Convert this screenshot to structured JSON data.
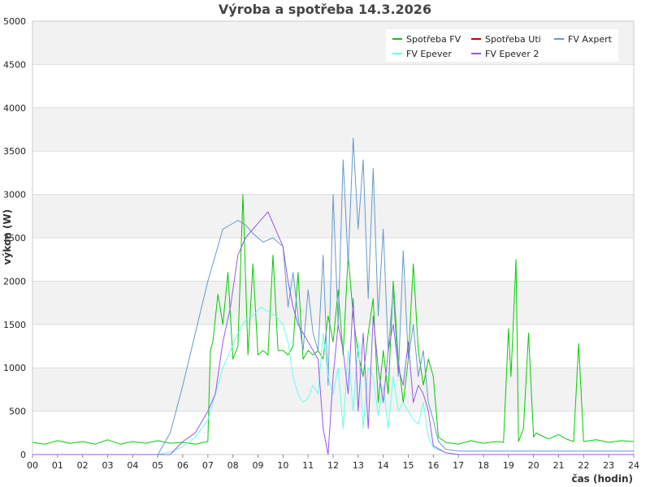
{
  "chart_data": {
    "type": "line",
    "title": "Výroba a spotřeba 14.3.2026",
    "xlabel": "čas (hodin)",
    "ylabel": "výkon (W)",
    "xlim": [
      0,
      24
    ],
    "ylim": [
      0,
      5000
    ],
    "x_ticks": [
      "00",
      "01",
      "02",
      "03",
      "04",
      "05",
      "06",
      "07",
      "08",
      "09",
      "10",
      "11",
      "12",
      "13",
      "14",
      "15",
      "16",
      "17",
      "18",
      "19",
      "20",
      "21",
      "22",
      "23",
      "24"
    ],
    "y_ticks": [
      "0",
      "500",
      "1000",
      "1500",
      "2000",
      "2500",
      "3000",
      "3500",
      "4000",
      "4500",
      "5000"
    ],
    "grid": "horizontal bands",
    "legend_position": "top-right",
    "series": [
      {
        "name": "Spotřeba FV",
        "color": "#00cc00",
        "x": [
          0,
          0.5,
          1,
          1.5,
          2,
          2.5,
          3,
          3.5,
          4,
          4.5,
          5,
          5.5,
          6,
          6.5,
          7,
          7.1,
          7.2,
          7.4,
          7.6,
          7.8,
          8,
          8.2,
          8.4,
          8.6,
          8.8,
          9,
          9.2,
          9.4,
          9.6,
          9.8,
          10,
          10.2,
          10.4,
          10.6,
          10.8,
          11,
          11.2,
          11.4,
          11.6,
          11.8,
          12,
          12.2,
          12.4,
          12.6,
          12.8,
          13,
          13.2,
          13.4,
          13.6,
          13.8,
          14,
          14.2,
          14.4,
          14.6,
          14.8,
          15,
          15.2,
          15.4,
          15.6,
          15.8,
          16,
          16.2,
          16.5,
          17,
          17.5,
          18,
          18.5,
          18.8,
          19,
          19.1,
          19.3,
          19.4,
          19.6,
          19.8,
          20,
          20.1,
          20.3,
          20.6,
          21,
          21.3,
          21.6,
          21.8,
          22,
          22.5,
          23,
          23.5,
          24
        ],
        "y": [
          140,
          120,
          160,
          130,
          150,
          120,
          170,
          120,
          150,
          130,
          160,
          130,
          140,
          120,
          150,
          1200,
          1300,
          1850,
          1500,
          2100,
          1100,
          1250,
          3000,
          1150,
          2200,
          1150,
          1200,
          1150,
          2300,
          1200,
          1200,
          1150,
          1250,
          2100,
          1100,
          1200,
          1150,
          1200,
          1100,
          1600,
          1300,
          1900,
          1150,
          2300,
          1600,
          1150,
          900,
          1400,
          1800,
          600,
          1200,
          700,
          2000,
          1100,
          600,
          1100,
          2200,
          1200,
          800,
          1100,
          900,
          200,
          140,
          120,
          160,
          130,
          150,
          140,
          1450,
          900,
          2250,
          150,
          300,
          1400,
          200,
          250,
          220,
          180,
          230,
          180,
          150,
          1280,
          150,
          170,
          140,
          160,
          150
        ]
      },
      {
        "name": "Spotřeba Uti",
        "color": "#cc0000",
        "x": [],
        "y": []
      },
      {
        "name": "FV Axpert",
        "color": "#6699cc",
        "x": [
          0,
          5,
          5.5,
          6,
          6.5,
          7,
          7.3,
          7.6,
          7.9,
          8.2,
          8.5,
          8.8,
          9.2,
          9.6,
          10,
          10.2,
          10.4,
          10.6,
          10.8,
          11,
          11.2,
          11.4,
          11.6,
          11.8,
          12,
          12.2,
          12.4,
          12.6,
          12.8,
          13,
          13.2,
          13.4,
          13.6,
          13.8,
          14,
          14.2,
          14.4,
          14.6,
          14.8,
          15,
          15.2,
          15.4,
          15.6,
          15.8,
          16,
          16.2,
          16.5,
          17,
          18,
          20,
          24
        ],
        "y": [
          0,
          0,
          250,
          800,
          1400,
          2000,
          2300,
          2600,
          2650,
          2700,
          2650,
          2550,
          2450,
          2500,
          2400,
          1700,
          2100,
          1600,
          1200,
          1900,
          1400,
          1200,
          2300,
          800,
          3000,
          1500,
          3400,
          2200,
          3650,
          2600,
          3400,
          1800,
          3300,
          1600,
          2600,
          1200,
          1900,
          900,
          2350,
          1100,
          1500,
          900,
          1200,
          600,
          400,
          150,
          60,
          40,
          40,
          40,
          40
        ]
      },
      {
        "name": "FV Epever",
        "color": "#66ffee",
        "x": [
          0,
          5,
          5.5,
          6,
          6.5,
          7,
          7.3,
          7.6,
          7.9,
          8.2,
          8.5,
          8.8,
          9.1,
          9.4,
          9.7,
          10,
          10.2,
          10.4,
          10.6,
          10.8,
          11,
          11.2,
          11.4,
          11.6,
          11.8,
          12,
          12.2,
          12.4,
          12.6,
          12.8,
          13,
          13.2,
          13.4,
          13.6,
          13.8,
          14,
          14.2,
          14.4,
          14.6,
          14.8,
          15,
          15.2,
          15.4,
          15.6,
          15.8,
          16,
          16.5,
          17,
          24
        ],
        "y": [
          0,
          0,
          30,
          90,
          200,
          400,
          700,
          1000,
          1200,
          1400,
          1550,
          1600,
          1700,
          1650,
          1600,
          1500,
          1300,
          900,
          700,
          600,
          650,
          800,
          700,
          1400,
          900,
          700,
          1000,
          300,
          1200,
          500,
          1300,
          300,
          1000,
          900,
          450,
          800,
          300,
          900,
          500,
          600,
          500,
          400,
          350,
          600,
          200,
          80,
          20,
          0,
          0
        ]
      },
      {
        "name": "FV Epever 2",
        "color": "#9955ee",
        "x": [
          0,
          5.5,
          6,
          6.5,
          7,
          7.3,
          7.6,
          7.9,
          8.2,
          8.5,
          8.8,
          9.1,
          9.4,
          9.7,
          10,
          10.2,
          10.4,
          10.6,
          10.8,
          11,
          11.2,
          11.4,
          11.6,
          11.8,
          12,
          12.2,
          12.4,
          12.6,
          12.8,
          13,
          13.2,
          13.4,
          13.6,
          13.8,
          14,
          14.2,
          14.4,
          14.6,
          14.8,
          15,
          15.2,
          15.4,
          15.6,
          15.8,
          16,
          16.5,
          17,
          24
        ],
        "y": [
          0,
          0,
          150,
          250,
          500,
          700,
          1300,
          1700,
          2300,
          2500,
          2600,
          2700,
          2800,
          2600,
          2400,
          2000,
          1700,
          1500,
          1400,
          1300,
          1200,
          1100,
          300,
          0,
          900,
          1500,
          1200,
          700,
          1800,
          500,
          1400,
          300,
          1600,
          1000,
          600,
          1200,
          1500,
          1000,
          800,
          1300,
          600,
          800,
          700,
          500,
          100,
          20,
          0,
          0
        ]
      }
    ]
  }
}
